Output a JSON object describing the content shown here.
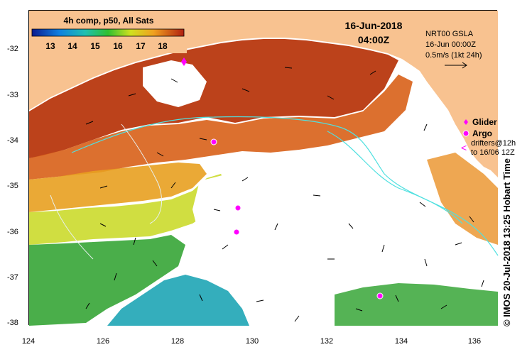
{
  "title_box": {
    "product": "4h comp, p50, All Sats",
    "colorbar_ticks": [
      "13",
      "14",
      "15",
      "16",
      "17",
      "18"
    ]
  },
  "date": {
    "day": "16-Jun-2018",
    "time": "04:00Z"
  },
  "altimetry": {
    "source": "NRT00 GSLA",
    "time": "16-Jun 00:00Z",
    "scale": "0.5m/s (1kt 24h)"
  },
  "legend": {
    "glider": "Glider",
    "argo": "Argo",
    "drifters_line1": "drifters@12h",
    "drifters_line2": "to 16/06 12Z"
  },
  "axes": {
    "x_ticks": [
      "124",
      "126",
      "128",
      "130",
      "132",
      "134",
      "136"
    ],
    "y_ticks": [
      "-32",
      "-33",
      "-34",
      "-35",
      "-36",
      "-37",
      "-38"
    ]
  },
  "credit": "© IMOS 20-Jul-2018 13:25 Hobart Time",
  "colors": {
    "land": "#f8c290",
    "sst_warm": "#b8380f",
    "sst_mid": "#e8a020",
    "sst_cool": "#2aa02a",
    "sst_cold": "#10a0b0",
    "marker": "#ff00ff",
    "contour": "#50e0e0"
  }
}
